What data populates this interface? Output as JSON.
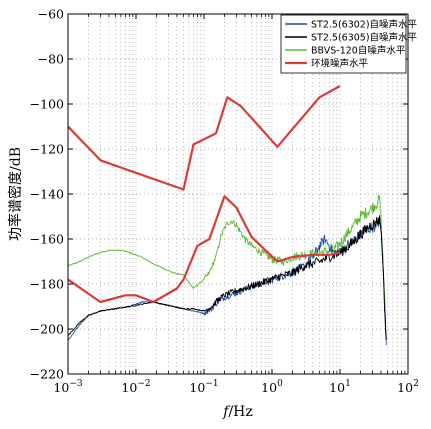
{
  "chart_data": {
    "type": "line",
    "xlabel": "f/Hz",
    "xlabel_italic_part": "f",
    "xlabel_unit_part": "/Hz",
    "ylabel": "功率谱密度/dB",
    "x_scale": "log",
    "xlim": [
      0.001,
      100
    ],
    "ylim": [
      -220,
      -60
    ],
    "x_ticks": [
      0.001,
      0.01,
      0.1,
      1,
      10,
      100
    ],
    "x_tick_labels": [
      {
        "base": "10",
        "exp": "−3"
      },
      {
        "base": "10",
        "exp": "−2"
      },
      {
        "base": "10",
        "exp": "−1"
      },
      {
        "base": "10",
        "exp": "0"
      },
      {
        "base": "10",
        "exp": "1"
      },
      {
        "base": "10",
        "exp": "2"
      }
    ],
    "y_ticks": [
      -220,
      -200,
      -180,
      -160,
      -140,
      -120,
      -100,
      -80,
      -60
    ],
    "y_tick_labels": [
      "−220",
      "−200",
      "−180",
      "−160",
      "−140",
      "−120",
      "−100",
      "−80",
      "−60"
    ],
    "grid": true,
    "legend_position": "top-right",
    "series": [
      {
        "name": "ST2.5(6302)自噪声水平",
        "color": "#1f4e9c",
        "noisy": true,
        "x": [
          0.001,
          0.0015,
          0.002,
          0.003,
          0.005,
          0.008,
          0.012,
          0.018,
          0.025,
          0.035,
          0.05,
          0.07,
          0.1,
          0.13,
          0.16,
          0.2,
          0.3,
          0.5,
          0.8,
          1.2,
          2,
          3,
          4,
          5,
          6,
          7,
          8,
          10,
          15,
          20,
          28,
          33,
          38,
          40,
          42,
          45,
          48
        ],
        "y": [
          -205,
          -198,
          -194,
          -192,
          -191,
          -190,
          -188,
          -188,
          -189,
          -190,
          -191,
          -192,
          -193,
          -191,
          -188,
          -186,
          -184,
          -181,
          -179,
          -177,
          -175,
          -172,
          -168,
          -163,
          -160,
          -163,
          -166,
          -166,
          -161,
          -158,
          -155,
          -154,
          -152,
          -155,
          -165,
          -190,
          -205
        ]
      },
      {
        "name": "ST2.5(6305)自噪声水平",
        "color": "#000000",
        "noisy": true,
        "x": [
          0.001,
          0.0015,
          0.002,
          0.003,
          0.005,
          0.008,
          0.012,
          0.018,
          0.025,
          0.035,
          0.05,
          0.07,
          0.1,
          0.13,
          0.16,
          0.2,
          0.3,
          0.5,
          0.8,
          1.2,
          2,
          3,
          5,
          7,
          10,
          15,
          20,
          28,
          33,
          38,
          40,
          42,
          45,
          48
        ],
        "y": [
          -203,
          -197,
          -194,
          -192,
          -191,
          -190,
          -189,
          -188,
          -189,
          -190,
          -191,
          -191,
          -192,
          -190,
          -187,
          -185,
          -183,
          -181,
          -179,
          -177,
          -175,
          -172,
          -170,
          -168,
          -166,
          -162,
          -158,
          -154,
          -153,
          -151,
          -155,
          -165,
          -188,
          -205
        ]
      },
      {
        "name": "BBVS-120自噪声水平",
        "color": "#5cb832",
        "noisy": true,
        "x": [
          0.001,
          0.0015,
          0.002,
          0.003,
          0.004,
          0.006,
          0.008,
          0.012,
          0.018,
          0.025,
          0.035,
          0.05,
          0.07,
          0.1,
          0.12,
          0.15,
          0.18,
          0.22,
          0.26,
          0.3,
          0.4,
          0.5,
          0.7,
          1,
          1.5,
          2,
          3,
          5,
          8,
          10,
          15,
          20,
          25,
          30,
          35,
          38,
          40,
          42,
          45,
          48
        ],
        "y": [
          -172,
          -170,
          -168,
          -166,
          -165,
          -165,
          -166,
          -168,
          -171,
          -173,
          -175,
          -176,
          -182,
          -178,
          -175,
          -168,
          -158,
          -153,
          -152,
          -154,
          -160,
          -163,
          -166,
          -169,
          -170,
          -168,
          -167,
          -166,
          -165,
          -162,
          -155,
          -150,
          -148,
          -146,
          -144,
          -142,
          -150,
          -165,
          -185,
          -205
        ]
      },
      {
        "name": "环境噪声水平",
        "color": "#d93a3a",
        "noisy": false,
        "segments": [
          {
            "x": [
              0.001,
              0.003,
              0.05,
              0.07,
              0.15,
              0.22,
              0.35,
              1.2,
              5,
              10
            ],
            "y": [
              -110,
              -125,
              -138,
              -118,
              -113,
              -97,
              -101,
              -119,
              -97,
              -92
            ]
          },
          {
            "x": [
              0.001,
              0.003,
              0.007,
              0.01,
              0.018,
              0.04,
              0.05,
              0.08,
              0.12,
              0.2,
              0.3,
              0.5,
              0.8,
              1.2,
              2,
              4,
              7,
              10
            ],
            "y": [
              -178,
              -188,
              -185,
              -185,
              -188,
              -182,
              -178,
              -163,
              -160,
              -141,
              -146,
              -159,
              -165,
              -170,
              -168,
              -167,
              -167,
              -166
            ]
          }
        ]
      }
    ]
  }
}
